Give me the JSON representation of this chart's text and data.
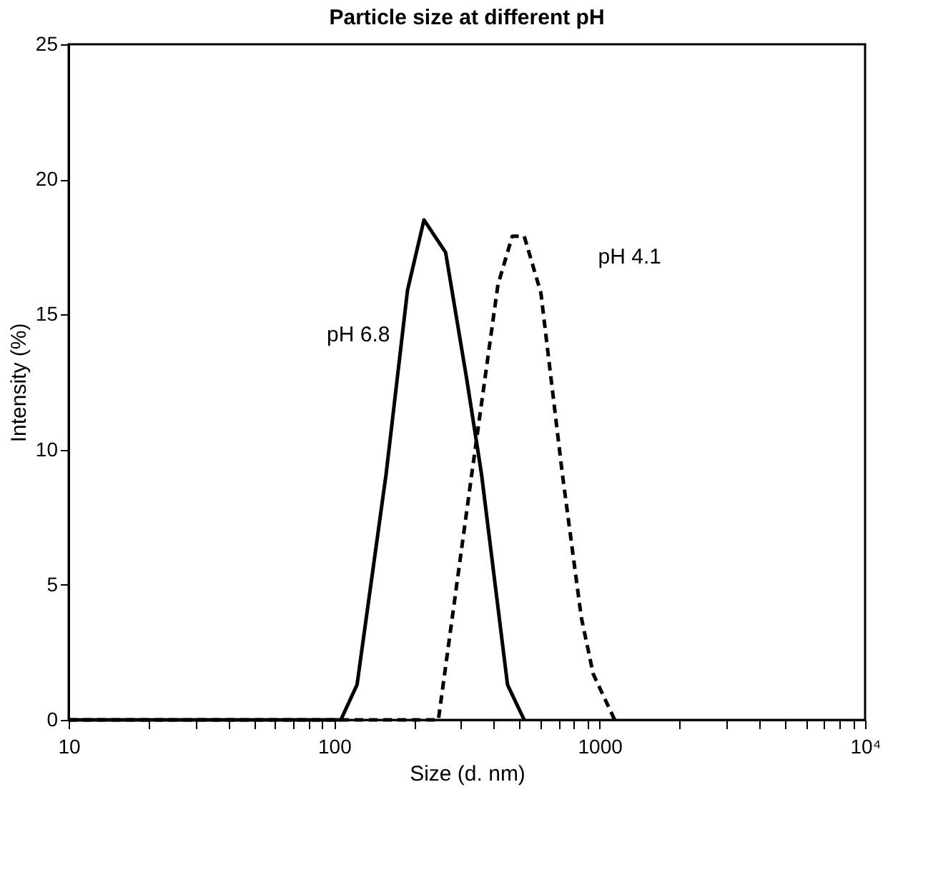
{
  "chart_data": {
    "type": "line",
    "title": "Particle size at different pH",
    "xlabel": "Size (d. nm)",
    "ylabel": "Intensity (%)",
    "log": "x",
    "xlim": [
      10,
      10000
    ],
    "ylim": [
      0,
      25
    ],
    "xticks": [
      10,
      {
        "value": 20,
        "label": null
      },
      {
        "value": 30,
        "label": null
      },
      {
        "value": 40,
        "label": null
      },
      {
        "value": 50,
        "label": null
      },
      {
        "value": 60,
        "label": null
      },
      {
        "value": 70,
        "label": null
      },
      {
        "value": 80,
        "label": null
      },
      {
        "value": 90,
        "label": null
      },
      100,
      {
        "value": 200,
        "label": null
      },
      {
        "value": 300,
        "label": null
      },
      {
        "value": 400,
        "label": null
      },
      {
        "value": 500,
        "label": null
      },
      {
        "value": 600,
        "label": null
      },
      {
        "value": 700,
        "label": null
      },
      {
        "value": 800,
        "label": null
      },
      {
        "value": 900,
        "label": null
      },
      1000,
      {
        "value": 2000,
        "label": null
      },
      {
        "value": 3000,
        "label": null
      },
      {
        "value": 4000,
        "label": null
      },
      {
        "value": 5000,
        "label": null
      },
      {
        "value": 6000,
        "label": null
      },
      {
        "value": 7000,
        "label": null
      },
      {
        "value": 8000,
        "label": null
      },
      {
        "value": 9000,
        "label": null
      },
      {
        "value": 10000,
        "label": "10⁴"
      }
    ],
    "yticks": [
      0,
      5,
      10,
      15,
      20,
      25
    ],
    "grid": false,
    "legend": false,
    "marker": "none",
    "series": [
      {
        "name": "pH 6.8",
        "color": "#000000",
        "line_style": "solid",
        "x": [
          10,
          106,
          122,
          157,
          189,
          218,
          263,
          316,
          359,
          450,
          520
        ],
        "values": [
          0,
          0,
          1.3,
          9.1,
          15.9,
          18.5,
          17.3,
          12.6,
          9.1,
          1.3,
          0
        ]
      },
      {
        "name": "pH 4.1",
        "color": "#000000",
        "line_style": "dashed",
        "x": [
          10,
          247,
          330,
          414,
          469,
          520,
          601,
          724,
          853,
          946,
          1140
        ],
        "values": [
          0,
          0,
          9.1,
          16.1,
          17.9,
          17.9,
          15.8,
          9.1,
          3.8,
          1.7,
          0
        ]
      }
    ]
  }
}
